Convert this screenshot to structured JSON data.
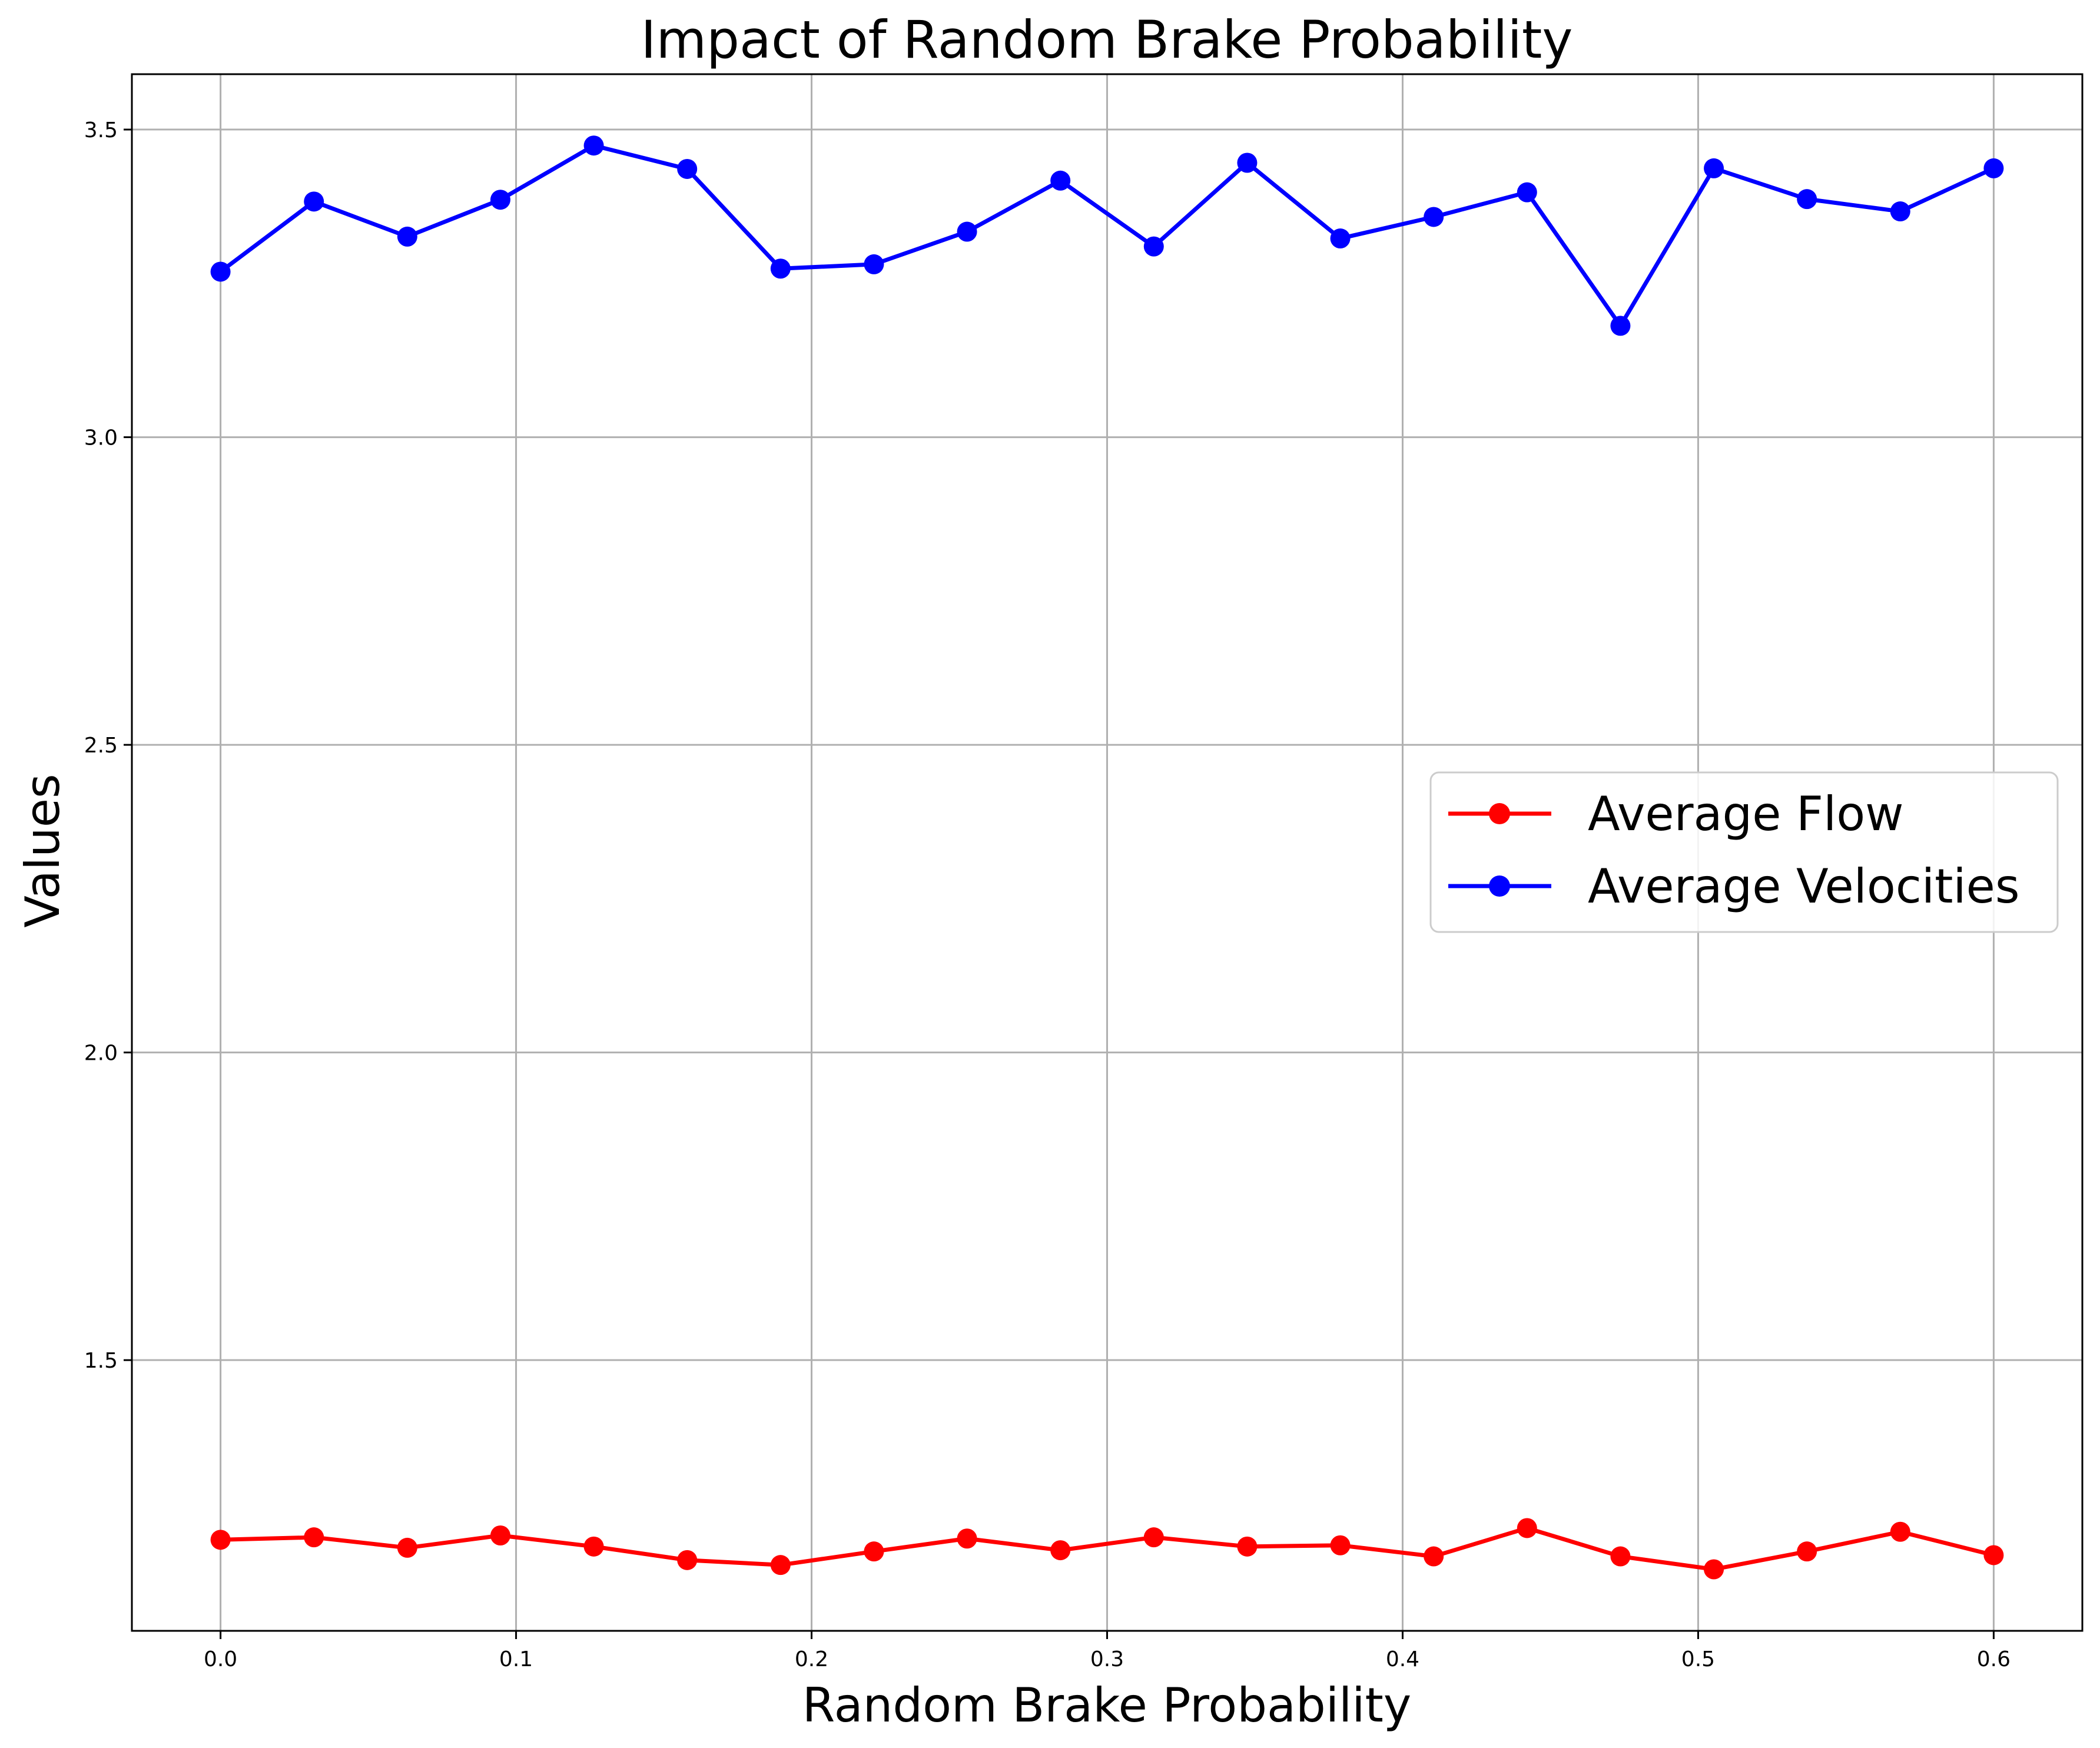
{
  "chart_data": {
    "type": "line",
    "title": "Impact of Random Brake Probability",
    "xlabel": "Random Brake Probability",
    "ylabel": "Values",
    "xlim": [
      -0.03,
      0.63
    ],
    "ylim": [
      1.06,
      3.59
    ],
    "xticks": [
      "0.0",
      "0.1",
      "0.2",
      "0.3",
      "0.4",
      "0.5",
      "0.6"
    ],
    "yticks": [
      "1.5",
      "2.0",
      "2.5",
      "3.0",
      "3.5"
    ],
    "grid": true,
    "legend_position": "center-right",
    "x": [
      0.0,
      0.0316,
      0.0632,
      0.0947,
      0.1263,
      0.1579,
      0.1895,
      0.2211,
      0.2526,
      0.2842,
      0.3158,
      0.3474,
      0.3789,
      0.4105,
      0.4421,
      0.4737,
      0.5053,
      0.5368,
      0.5684,
      0.6
    ],
    "series": [
      {
        "name": "Average Flow",
        "color": "#ff0000",
        "marker": "circle",
        "values": [
          1.208,
          1.212,
          1.195,
          1.215,
          1.197,
          1.175,
          1.167,
          1.189,
          1.21,
          1.191,
          1.212,
          1.197,
          1.199,
          1.181,
          1.227,
          1.181,
          1.16,
          1.189,
          1.221,
          1.183
        ]
      },
      {
        "name": "Average Velocities",
        "color": "#0000ff",
        "marker": "circle",
        "values": [
          3.269,
          3.383,
          3.326,
          3.386,
          3.474,
          3.436,
          3.274,
          3.281,
          3.334,
          3.417,
          3.31,
          3.446,
          3.323,
          3.358,
          3.398,
          3.181,
          3.437,
          3.387,
          3.367,
          3.437
        ]
      }
    ]
  }
}
